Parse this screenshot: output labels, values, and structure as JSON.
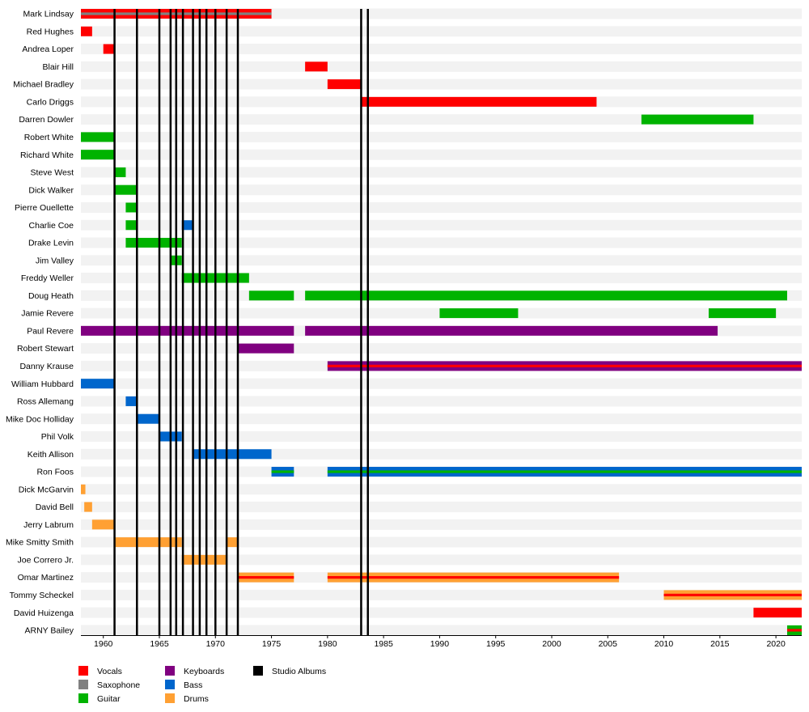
{
  "chart_data": {
    "type": "timeline",
    "title": "",
    "xlim": [
      1958,
      2022.3
    ],
    "x_ticks": [
      1960,
      1965,
      1970,
      1975,
      1980,
      1985,
      1990,
      1995,
      2000,
      2005,
      2010,
      2015,
      2020
    ],
    "roles": {
      "vocals": {
        "label": "Vocals",
        "color": "#ff0000"
      },
      "saxophone": {
        "label": "Saxophone",
        "color": "#808080"
      },
      "guitar": {
        "label": "Guitar",
        "color": "#00b300"
      },
      "keyboards": {
        "label": "Keyboards",
        "color": "#800080"
      },
      "bass": {
        "label": "Bass",
        "color": "#0066cc"
      },
      "drums": {
        "label": "Drums",
        "color": "#ffa033"
      },
      "studio_albums": {
        "label": "Studio Albums",
        "color": "#000000"
      }
    },
    "legend_order": [
      [
        "vocals",
        "saxophone",
        "guitar"
      ],
      [
        "keyboards",
        "bass",
        "drums"
      ],
      [
        "studio_albums"
      ]
    ],
    "members": [
      {
        "name": "Mark Lindsay",
        "bars": [
          {
            "start": 1958,
            "end": 1975,
            "role": "vocals",
            "accent": "saxophone"
          }
        ]
      },
      {
        "name": "Red Hughes",
        "bars": [
          {
            "start": 1958,
            "end": 1959,
            "role": "vocals"
          }
        ]
      },
      {
        "name": "Andrea Loper",
        "bars": [
          {
            "start": 1960,
            "end": 1961,
            "role": "vocals"
          }
        ]
      },
      {
        "name": "Blair Hill",
        "bars": [
          {
            "start": 1978,
            "end": 1980,
            "role": "vocals"
          }
        ]
      },
      {
        "name": "Michael Bradley",
        "bars": [
          {
            "start": 1980,
            "end": 1983,
            "role": "vocals"
          }
        ]
      },
      {
        "name": "Carlo Driggs",
        "bars": [
          {
            "start": 1983,
            "end": 2004,
            "role": "vocals"
          }
        ]
      },
      {
        "name": "Darren Dowler",
        "bars": [
          {
            "start": 2008,
            "end": 2018,
            "role": "guitar"
          }
        ]
      },
      {
        "name": "Robert White",
        "bars": [
          {
            "start": 1958,
            "end": 1961,
            "role": "guitar"
          }
        ]
      },
      {
        "name": "Richard White",
        "bars": [
          {
            "start": 1958,
            "end": 1961,
            "role": "guitar"
          }
        ]
      },
      {
        "name": "Steve West",
        "bars": [
          {
            "start": 1961,
            "end": 1962,
            "role": "guitar"
          }
        ]
      },
      {
        "name": "Dick Walker",
        "bars": [
          {
            "start": 1961,
            "end": 1963,
            "role": "guitar"
          }
        ]
      },
      {
        "name": "Pierre Ouellette",
        "bars": [
          {
            "start": 1962,
            "end": 1963,
            "role": "guitar"
          }
        ]
      },
      {
        "name": "Charlie Coe",
        "bars": [
          {
            "start": 1962,
            "end": 1963,
            "role": "guitar"
          },
          {
            "start": 1967,
            "end": 1968,
            "role": "bass"
          }
        ]
      },
      {
        "name": "Drake Levin",
        "bars": [
          {
            "start": 1962,
            "end": 1967,
            "role": "guitar"
          }
        ]
      },
      {
        "name": "Jim Valley",
        "bars": [
          {
            "start": 1966,
            "end": 1967,
            "role": "guitar"
          }
        ]
      },
      {
        "name": "Freddy Weller",
        "bars": [
          {
            "start": 1967,
            "end": 1973,
            "role": "guitar"
          }
        ]
      },
      {
        "name": "Doug Heath",
        "bars": [
          {
            "start": 1973,
            "end": 1977,
            "role": "guitar"
          },
          {
            "start": 1978,
            "end": 2021,
            "role": "guitar"
          }
        ]
      },
      {
        "name": "Jamie Revere",
        "bars": [
          {
            "start": 1990,
            "end": 1997,
            "role": "guitar"
          },
          {
            "start": 2014,
            "end": 2020,
            "role": "guitar"
          }
        ]
      },
      {
        "name": "Paul Revere",
        "bars": [
          {
            "start": 1958,
            "end": 1977,
            "role": "keyboards"
          },
          {
            "start": 1978,
            "end": 2014.8,
            "role": "keyboards"
          }
        ]
      },
      {
        "name": "Robert Stewart",
        "bars": [
          {
            "start": 1972,
            "end": 1977,
            "role": "keyboards"
          }
        ]
      },
      {
        "name": "Danny Krause",
        "bars": [
          {
            "start": 1980,
            "end": 2022.3,
            "role": "keyboards",
            "accent": "vocals"
          }
        ]
      },
      {
        "name": "William Hubbard",
        "bars": [
          {
            "start": 1958,
            "end": 1961,
            "role": "bass"
          }
        ]
      },
      {
        "name": "Ross Allemang",
        "bars": [
          {
            "start": 1962,
            "end": 1963,
            "role": "bass"
          }
        ]
      },
      {
        "name": "Mike Doc Holliday",
        "bars": [
          {
            "start": 1963,
            "end": 1965,
            "role": "bass"
          }
        ]
      },
      {
        "name": "Phil Volk",
        "bars": [
          {
            "start": 1965,
            "end": 1967,
            "role": "bass"
          }
        ]
      },
      {
        "name": "Keith Allison",
        "bars": [
          {
            "start": 1968,
            "end": 1975,
            "role": "bass"
          }
        ]
      },
      {
        "name": "Ron Foos",
        "bars": [
          {
            "start": 1975,
            "end": 1977,
            "role": "bass",
            "accent": "guitar"
          },
          {
            "start": 1980,
            "end": 2022.3,
            "role": "bass",
            "accent": "guitar"
          }
        ]
      },
      {
        "name": "Dick McGarvin",
        "bars": [
          {
            "start": 1958,
            "end": 1958.4,
            "role": "drums"
          }
        ]
      },
      {
        "name": "David Bell",
        "bars": [
          {
            "start": 1958.3,
            "end": 1959,
            "role": "drums"
          }
        ]
      },
      {
        "name": "Jerry Labrum",
        "bars": [
          {
            "start": 1959,
            "end": 1961,
            "role": "drums"
          }
        ]
      },
      {
        "name": "Mike Smitty Smith",
        "bars": [
          {
            "start": 1961,
            "end": 1967,
            "role": "drums"
          },
          {
            "start": 1971,
            "end": 1972,
            "role": "drums"
          }
        ]
      },
      {
        "name": "Joe Correro Jr.",
        "bars": [
          {
            "start": 1967,
            "end": 1971,
            "role": "drums"
          }
        ]
      },
      {
        "name": "Omar Martinez",
        "bars": [
          {
            "start": 1972,
            "end": 1977,
            "role": "drums",
            "accent": "vocals"
          },
          {
            "start": 1980,
            "end": 2006,
            "role": "drums",
            "accent": "vocals"
          }
        ]
      },
      {
        "name": "Tommy Scheckel",
        "bars": [
          {
            "start": 2010,
            "end": 2022.3,
            "role": "drums",
            "accent": "vocals"
          }
        ]
      },
      {
        "name": "David Huizenga",
        "bars": [
          {
            "start": 2018,
            "end": 2022.3,
            "role": "vocals"
          }
        ]
      },
      {
        "name": "ARNY Bailey",
        "bars": [
          {
            "start": 2021,
            "end": 2022.3,
            "role": "guitar",
            "accent": "vocals"
          }
        ]
      }
    ],
    "studio_albums": [
      1961,
      1963,
      1965,
      1966,
      1966.5,
      1967.1,
      1968,
      1968.6,
      1969.2,
      1970,
      1971,
      1972,
      1983,
      1983.6
    ]
  }
}
